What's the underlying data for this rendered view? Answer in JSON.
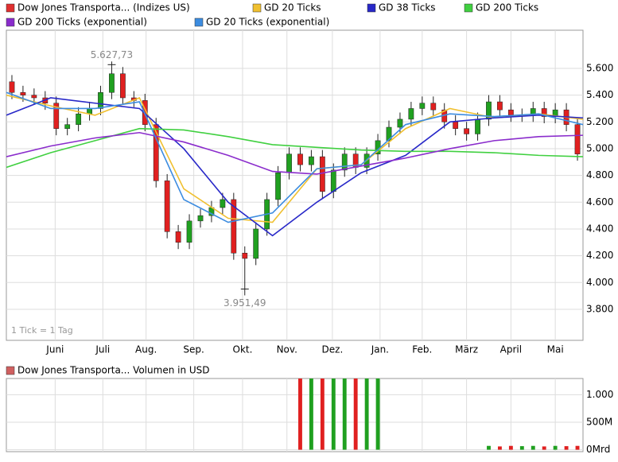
{
  "chart_data": [
    {
      "type": "candlestick",
      "name": "Dow Jones Transporta... (Indizes US)",
      "color": "#e03030",
      "up_color": "#20a020",
      "down_color": "#e02020",
      "x": [
        0.5,
        1.5,
        2.5,
        3.5,
        4.5,
        5.5,
        6.5,
        7.5,
        8.5,
        9.5,
        10.5,
        11.5,
        12.5,
        13.5,
        14.5,
        15.5,
        16.5,
        17.5,
        18.5,
        19.5,
        20.5,
        21.5,
        22.5,
        23.5,
        24.5,
        25.5,
        26.5,
        27.5,
        28.5,
        29.5,
        30.5,
        31.5,
        32.5,
        33.5,
        34.5,
        35.5,
        36.5,
        37.5,
        38.5,
        39.5,
        40.5,
        41.5,
        42.5,
        43.5,
        44.5,
        45.5,
        46.5,
        47.5,
        48.5,
        49.5,
        50.5,
        51.5
      ],
      "open": [
        5500,
        5420,
        5400,
        5380,
        5340,
        5150,
        5180,
        5260,
        5300,
        5420,
        5560,
        5380,
        5360,
        5180,
        4760,
        4380,
        4300,
        4460,
        4500,
        4560,
        4620,
        4220,
        4180,
        4400,
        4620,
        4820,
        4960,
        4880,
        4940,
        4680,
        4840,
        4960,
        4860,
        4960,
        5060,
        5160,
        5220,
        5300,
        5340,
        5290,
        5200,
        5150,
        5110,
        5220,
        5350,
        5290,
        5250,
        5250,
        5300,
        5240,
        5290,
        5180
      ],
      "high": [
        5550,
        5470,
        5450,
        5430,
        5390,
        5230,
        5310,
        5350,
        5470,
        5627.73,
        5610,
        5430,
        5410,
        5230,
        4810,
        4430,
        4510,
        4550,
        4610,
        4670,
        4670,
        4270,
        4450,
        4670,
        4870,
        5010,
        5010,
        4990,
        4990,
        4890,
        5010,
        5010,
        5010,
        5110,
        5210,
        5270,
        5350,
        5390,
        5390,
        5340,
        5250,
        5200,
        5270,
        5400,
        5400,
        5340,
        5300,
        5350,
        5350,
        5340,
        5340,
        5230
      ],
      "low": [
        5370,
        5350,
        5330,
        5290,
        5100,
        5100,
        5130,
        5210,
        5250,
        5370,
        5330,
        5310,
        5130,
        4710,
        4330,
        4250,
        4250,
        4410,
        4450,
        4510,
        4170,
        3951.49,
        4130,
        4350,
        4570,
        4770,
        4830,
        4830,
        4630,
        4630,
        4790,
        4810,
        4810,
        4910,
        5010,
        5110,
        5170,
        5250,
        5240,
        5150,
        5100,
        5060,
        5060,
        5170,
        5240,
        5200,
        5200,
        5200,
        5190,
        5190,
        5130,
        4910
      ],
      "close": [
        5420,
        5400,
        5380,
        5340,
        5150,
        5180,
        5260,
        5300,
        5420,
        5560,
        5380,
        5360,
        5180,
        4760,
        4380,
        4300,
        4460,
        4500,
        4560,
        4620,
        4220,
        4180,
        4400,
        4620,
        4820,
        4960,
        4880,
        4940,
        4680,
        4840,
        4960,
        4860,
        4960,
        5060,
        5160,
        5220,
        5300,
        5340,
        5290,
        5200,
        5150,
        5110,
        5220,
        5350,
        5290,
        5250,
        5250,
        5300,
        5240,
        5290,
        5180,
        4960
      ],
      "series": [
        {
          "name": "GD 20 Ticks",
          "color": "#f0c030",
          "x": [
            0,
            4,
            8,
            12,
            16,
            20,
            24,
            28,
            32,
            36,
            40,
            44,
            48,
            52
          ],
          "values": [
            5400,
            5320,
            5250,
            5380,
            4700,
            4480,
            4450,
            4850,
            4880,
            5150,
            5300,
            5230,
            5260,
            5220
          ]
        },
        {
          "name": "GD 38 Ticks",
          "color": "#2828c8",
          "x": [
            0,
            4,
            8,
            12,
            16,
            20,
            24,
            28,
            32,
            36,
            40,
            44,
            48,
            52
          ],
          "values": [
            5250,
            5380,
            5340,
            5300,
            5000,
            4600,
            4350,
            4600,
            4820,
            4950,
            5200,
            5230,
            5250,
            5230
          ]
        },
        {
          "name": "GD 200 Ticks",
          "color": "#40d040",
          "x": [
            0,
            4,
            8,
            12,
            16,
            20,
            24,
            28,
            32,
            36,
            40,
            44,
            48,
            52
          ],
          "values": [
            4860,
            4970,
            5060,
            5150,
            5140,
            5090,
            5030,
            5010,
            4990,
            4980,
            4980,
            4970,
            4950,
            4940
          ]
        },
        {
          "name": "GD 200 Ticks (exponential)",
          "color": "#8a2ccc",
          "x": [
            0,
            4,
            8,
            12,
            16,
            20,
            24,
            28,
            32,
            36,
            40,
            44,
            48,
            52
          ],
          "values": [
            4940,
            5020,
            5080,
            5120,
            5050,
            4950,
            4830,
            4810,
            4870,
            4930,
            5000,
            5060,
            5090,
            5100
          ]
        },
        {
          "name": "GD 20 Ticks (exponential)",
          "color": "#3c8ce0",
          "x": [
            0,
            4,
            8,
            12,
            16,
            20,
            24,
            28,
            32,
            36,
            40,
            44,
            48,
            52
          ],
          "values": [
            5420,
            5300,
            5300,
            5350,
            4620,
            4450,
            4520,
            4850,
            4880,
            5180,
            5260,
            5240,
            5260,
            5180
          ]
        }
      ],
      "xlim": [
        0,
        52
      ],
      "xticks": [
        {
          "value": 4.4,
          "label": "Juni"
        },
        {
          "value": 8.7,
          "label": "Juli"
        },
        {
          "value": 12.6,
          "label": "Aug."
        },
        {
          "value": 16.9,
          "label": "Sep."
        },
        {
          "value": 21.3,
          "label": "Okt."
        },
        {
          "value": 25.3,
          "label": "Nov."
        },
        {
          "value": 29.4,
          "label": "Dez."
        },
        {
          "value": 33.7,
          "label": "Jan."
        },
        {
          "value": 37.5,
          "label": "Feb."
        },
        {
          "value": 41.5,
          "label": "März"
        },
        {
          "value": 45.5,
          "label": "April"
        },
        {
          "value": 49.5,
          "label": "Mai"
        }
      ],
      "ylim": [
        3568,
        5885
      ],
      "yticks": [
        {
          "value": 3800,
          "label": "3.800"
        },
        {
          "value": 4000,
          "label": "4.000"
        },
        {
          "value": 4200,
          "label": "4.200"
        },
        {
          "value": 4400,
          "label": "4.400"
        },
        {
          "value": 4600,
          "label": "4.600"
        },
        {
          "value": 4800,
          "label": "4.800"
        },
        {
          "value": 5000,
          "label": "5.000"
        },
        {
          "value": 5200,
          "label": "5.200"
        },
        {
          "value": 5400,
          "label": "5.400"
        },
        {
          "value": 5600,
          "label": "5.600"
        }
      ],
      "grid": true,
      "note": "1 Tick = 1 Tag",
      "annotations": [
        {
          "label": "5.627,73",
          "value": 5627.73,
          "x": 9.5,
          "position": "above"
        },
        {
          "label": "3.951,49",
          "value": 3951.49,
          "x": 21.5,
          "position": "below"
        }
      ]
    },
    {
      "type": "bar",
      "name": "Dow Jones Transporta... Volumen in USD",
      "color": "#d06060",
      "x": [
        0.5,
        1.5,
        2.5,
        3.5,
        4.5,
        5.5,
        6.5,
        7.5,
        8.5,
        9.5,
        10.5,
        11.5,
        12.5,
        13.5,
        14.5,
        15.5,
        16.5,
        17.5,
        18.5,
        19.5,
        20.5,
        21.5,
        22.5,
        23.5,
        24.5,
        25.5,
        26.5,
        27.5,
        28.5,
        29.5,
        30.5,
        31.5,
        32.5,
        33.5,
        34.5,
        35.5,
        36.5,
        37.5,
        38.5,
        39.5,
        40.5,
        41.5,
        42.5,
        43.5,
        44.5,
        45.5,
        46.5,
        47.5,
        48.5,
        49.5,
        50.5,
        51.5
      ],
      "values": [
        0,
        0,
        0,
        0,
        0,
        0,
        0,
        0,
        0,
        0,
        0,
        0,
        0,
        0,
        0,
        0,
        0,
        0,
        0,
        0,
        0,
        0,
        0,
        0,
        0,
        0,
        1300,
        1300,
        1300,
        1300,
        1300,
        1300,
        1300,
        1300,
        0,
        0,
        0,
        0,
        0,
        0,
        0,
        0,
        0,
        70,
        60,
        70,
        65,
        70,
        60,
        70,
        65,
        70
      ],
      "xlim": [
        0,
        52
      ],
      "ylim": [
        -35,
        1294
      ],
      "yticks": [
        {
          "value": 0,
          "label": "0Mrd"
        },
        {
          "value": 500,
          "label": "500M"
        },
        {
          "value": 1000,
          "label": "1.000"
        }
      ],
      "grid": true
    }
  ]
}
